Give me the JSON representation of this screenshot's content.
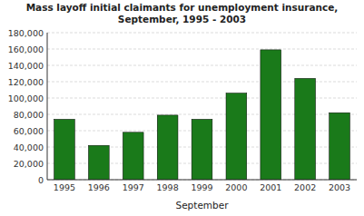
{
  "chart_data": {
    "type": "bar",
    "title": "Mass layoff initial claimants for unemployment insurance,\nSeptember, 1995 - 2003",
    "xlabel": "September",
    "categories": [
      "1995",
      "1996",
      "1997",
      "1998",
      "1999",
      "2000",
      "2001",
      "2002",
      "2003"
    ],
    "values": [
      74000,
      42000,
      58000,
      79000,
      74000,
      106000,
      159000,
      124000,
      82000
    ],
    "color": "#1a7a1a",
    "ylim": [
      0,
      180000
    ],
    "yticks": [
      0,
      {
        "value": 20000,
        "label": "20,000"
      },
      {
        "value": 40000,
        "label": "40,000"
      },
      {
        "value": 60000,
        "label": "60,000"
      },
      {
        "value": 80000,
        "label": "80,000"
      },
      {
        "value": 100000,
        "label": "100,000"
      },
      {
        "value": 120000,
        "label": "120,000"
      },
      {
        "value": 140000,
        "label": "140,000"
      },
      {
        "value": 160000,
        "label": "160,000"
      },
      {
        "value": 180000,
        "label": "180,000"
      }
    ],
    "grid": true
  }
}
